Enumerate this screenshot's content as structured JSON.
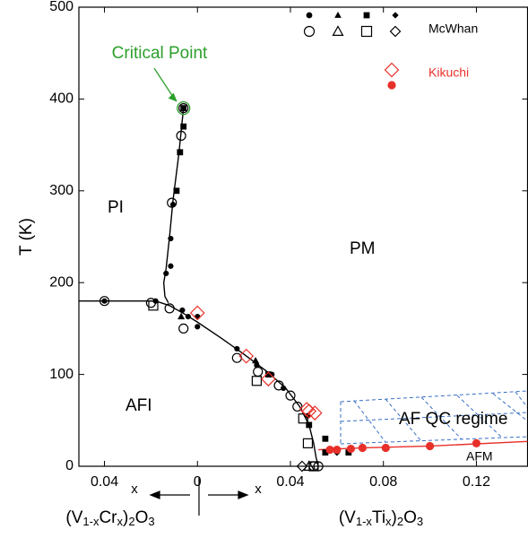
{
  "chart_data": {
    "type": "scatter",
    "y_label": "T (K)",
    "xlim": [
      -0.051,
      0.142
    ],
    "ylim": [
      0,
      500
    ],
    "xticks": [
      {
        "value": -0.04,
        "label": "0.04"
      },
      0,
      0.04,
      0.08,
      0.12
    ],
    "yticks": [
      0,
      100,
      200,
      300,
      400,
      500
    ],
    "x_direction_labels": [
      "x",
      "x"
    ],
    "compound_left": [
      "(V",
      "1-x",
      "Cr",
      "x",
      ")",
      "2",
      "O",
      "3"
    ],
    "compound_right": [
      "(V",
      "1-x",
      "Ti",
      "x",
      ")",
      "2",
      "O",
      "3"
    ],
    "legend": [
      {
        "name": "McWhan",
        "color": "#000000",
        "markers": [
          "circle",
          "triangle",
          "square",
          "diamond"
        ]
      },
      {
        "name": "Kikuchi",
        "color": "#e8302a",
        "markers": [
          "diamond",
          "circle"
        ]
      }
    ],
    "critical_point": {
      "text": "Critical Point",
      "color": "#2ca02c",
      "x": -0.006,
      "y": 390
    },
    "region_labels": [
      "PI",
      "PM",
      "AFI",
      "AF QC regime",
      "AFM"
    ],
    "curves": [
      {
        "color": "#000000",
        "x": [
          -0.006,
          -0.008,
          -0.0105,
          -0.012,
          -0.0135,
          -0.0145,
          -0.014,
          -0.0125
        ],
        "values": [
          390,
          340,
          290,
          250,
          215,
          200,
          185,
          178
        ]
      },
      {
        "color": "#000000",
        "x": [
          -0.051,
          -0.018,
          -0.012,
          -0.005,
          0,
          0.01,
          0.02,
          0.03,
          0.038,
          0.044,
          0.048,
          0.05,
          0.051,
          0.052
        ],
        "values": [
          180,
          180,
          175,
          165,
          157,
          140,
          122,
          103,
          85,
          65,
          45,
          25,
          10,
          0
        ]
      },
      {
        "color": "#e8302a",
        "x": [
          0.052,
          0.07,
          0.1,
          0.142
        ],
        "values": [
          18,
          20,
          22,
          27
        ]
      }
    ],
    "series": [
      {
        "marker": "circle",
        "filled": true,
        "size": 2.5,
        "color": "#000000",
        "x": [
          -0.04,
          -0.018,
          -0.0135,
          -0.0115,
          -0.0115,
          -0.0105,
          -0.0065,
          -0.004,
          0,
          0,
          0.017,
          0.0255,
          0.032,
          0.037,
          0.0475
        ],
        "values": [
          180,
          180,
          210,
          218,
          248,
          285,
          170,
          163,
          152,
          163,
          128,
          110,
          100,
          85,
          55
        ]
      },
      {
        "marker": "triangle",
        "filled": true,
        "size": 3,
        "color": "#000000",
        "x": [
          -0.007,
          0.025
        ],
        "values": [
          163,
          115
        ]
      },
      {
        "marker": "square",
        "filled": true,
        "size": 2.8,
        "color": "#000000",
        "x": [
          -0.006,
          -0.006,
          -0.0075,
          -0.009,
          0.0305,
          0.048,
          0.055,
          0.055,
          0.065
        ],
        "values": [
          390,
          370,
          342,
          300,
          100,
          45,
          15,
          30,
          15
        ]
      },
      {
        "marker": "diamond",
        "filled": true,
        "size": 3,
        "color": "#000000",
        "x": [
          0.06
        ],
        "values": [
          15
        ]
      },
      {
        "marker": "circle",
        "filled": false,
        "size": 5,
        "color": "#000000",
        "x": [
          -0.04,
          -0.02,
          -0.012,
          -0.006,
          -0.007,
          -0.011,
          -0.006,
          0.017,
          0.026,
          0.035,
          0.04,
          0.043,
          0.05,
          0.052
        ],
        "values": [
          180,
          178,
          172,
          150,
          360,
          287,
          390,
          118,
          103,
          88,
          77,
          65,
          0,
          0
        ]
      },
      {
        "marker": "triangle",
        "filled": false,
        "size": 5.5,
        "color": "#000000",
        "x": [
          0.048
        ],
        "values": [
          0
        ]
      },
      {
        "marker": "square",
        "filled": false,
        "size": 5,
        "color": "#000000",
        "x": [
          -0.019,
          0.0255,
          0.0455,
          0.0475,
          0.05
        ],
        "values": [
          175,
          93,
          52,
          25,
          0
        ]
      },
      {
        "marker": "diamond",
        "filled": false,
        "size": 5.5,
        "color": "#000000",
        "x": [
          0.045
        ],
        "values": [
          0
        ]
      },
      {
        "marker": "diamond",
        "filled": false,
        "size": 7.5,
        "color": "#e8302a",
        "x": [
          0,
          0.021,
          0.0305,
          0.047,
          0.0505,
          0.048
        ],
        "values": [
          167,
          120,
          95,
          62,
          58,
          60
        ]
      },
      {
        "marker": "circle",
        "filled": true,
        "size": 4,
        "color": "#e8302a",
        "x": [
          0.057,
          0.06,
          0.066,
          0.071,
          0.081,
          0.1,
          0.12
        ],
        "values": [
          18,
          18,
          19,
          20,
          20,
          22,
          25
        ]
      }
    ]
  }
}
